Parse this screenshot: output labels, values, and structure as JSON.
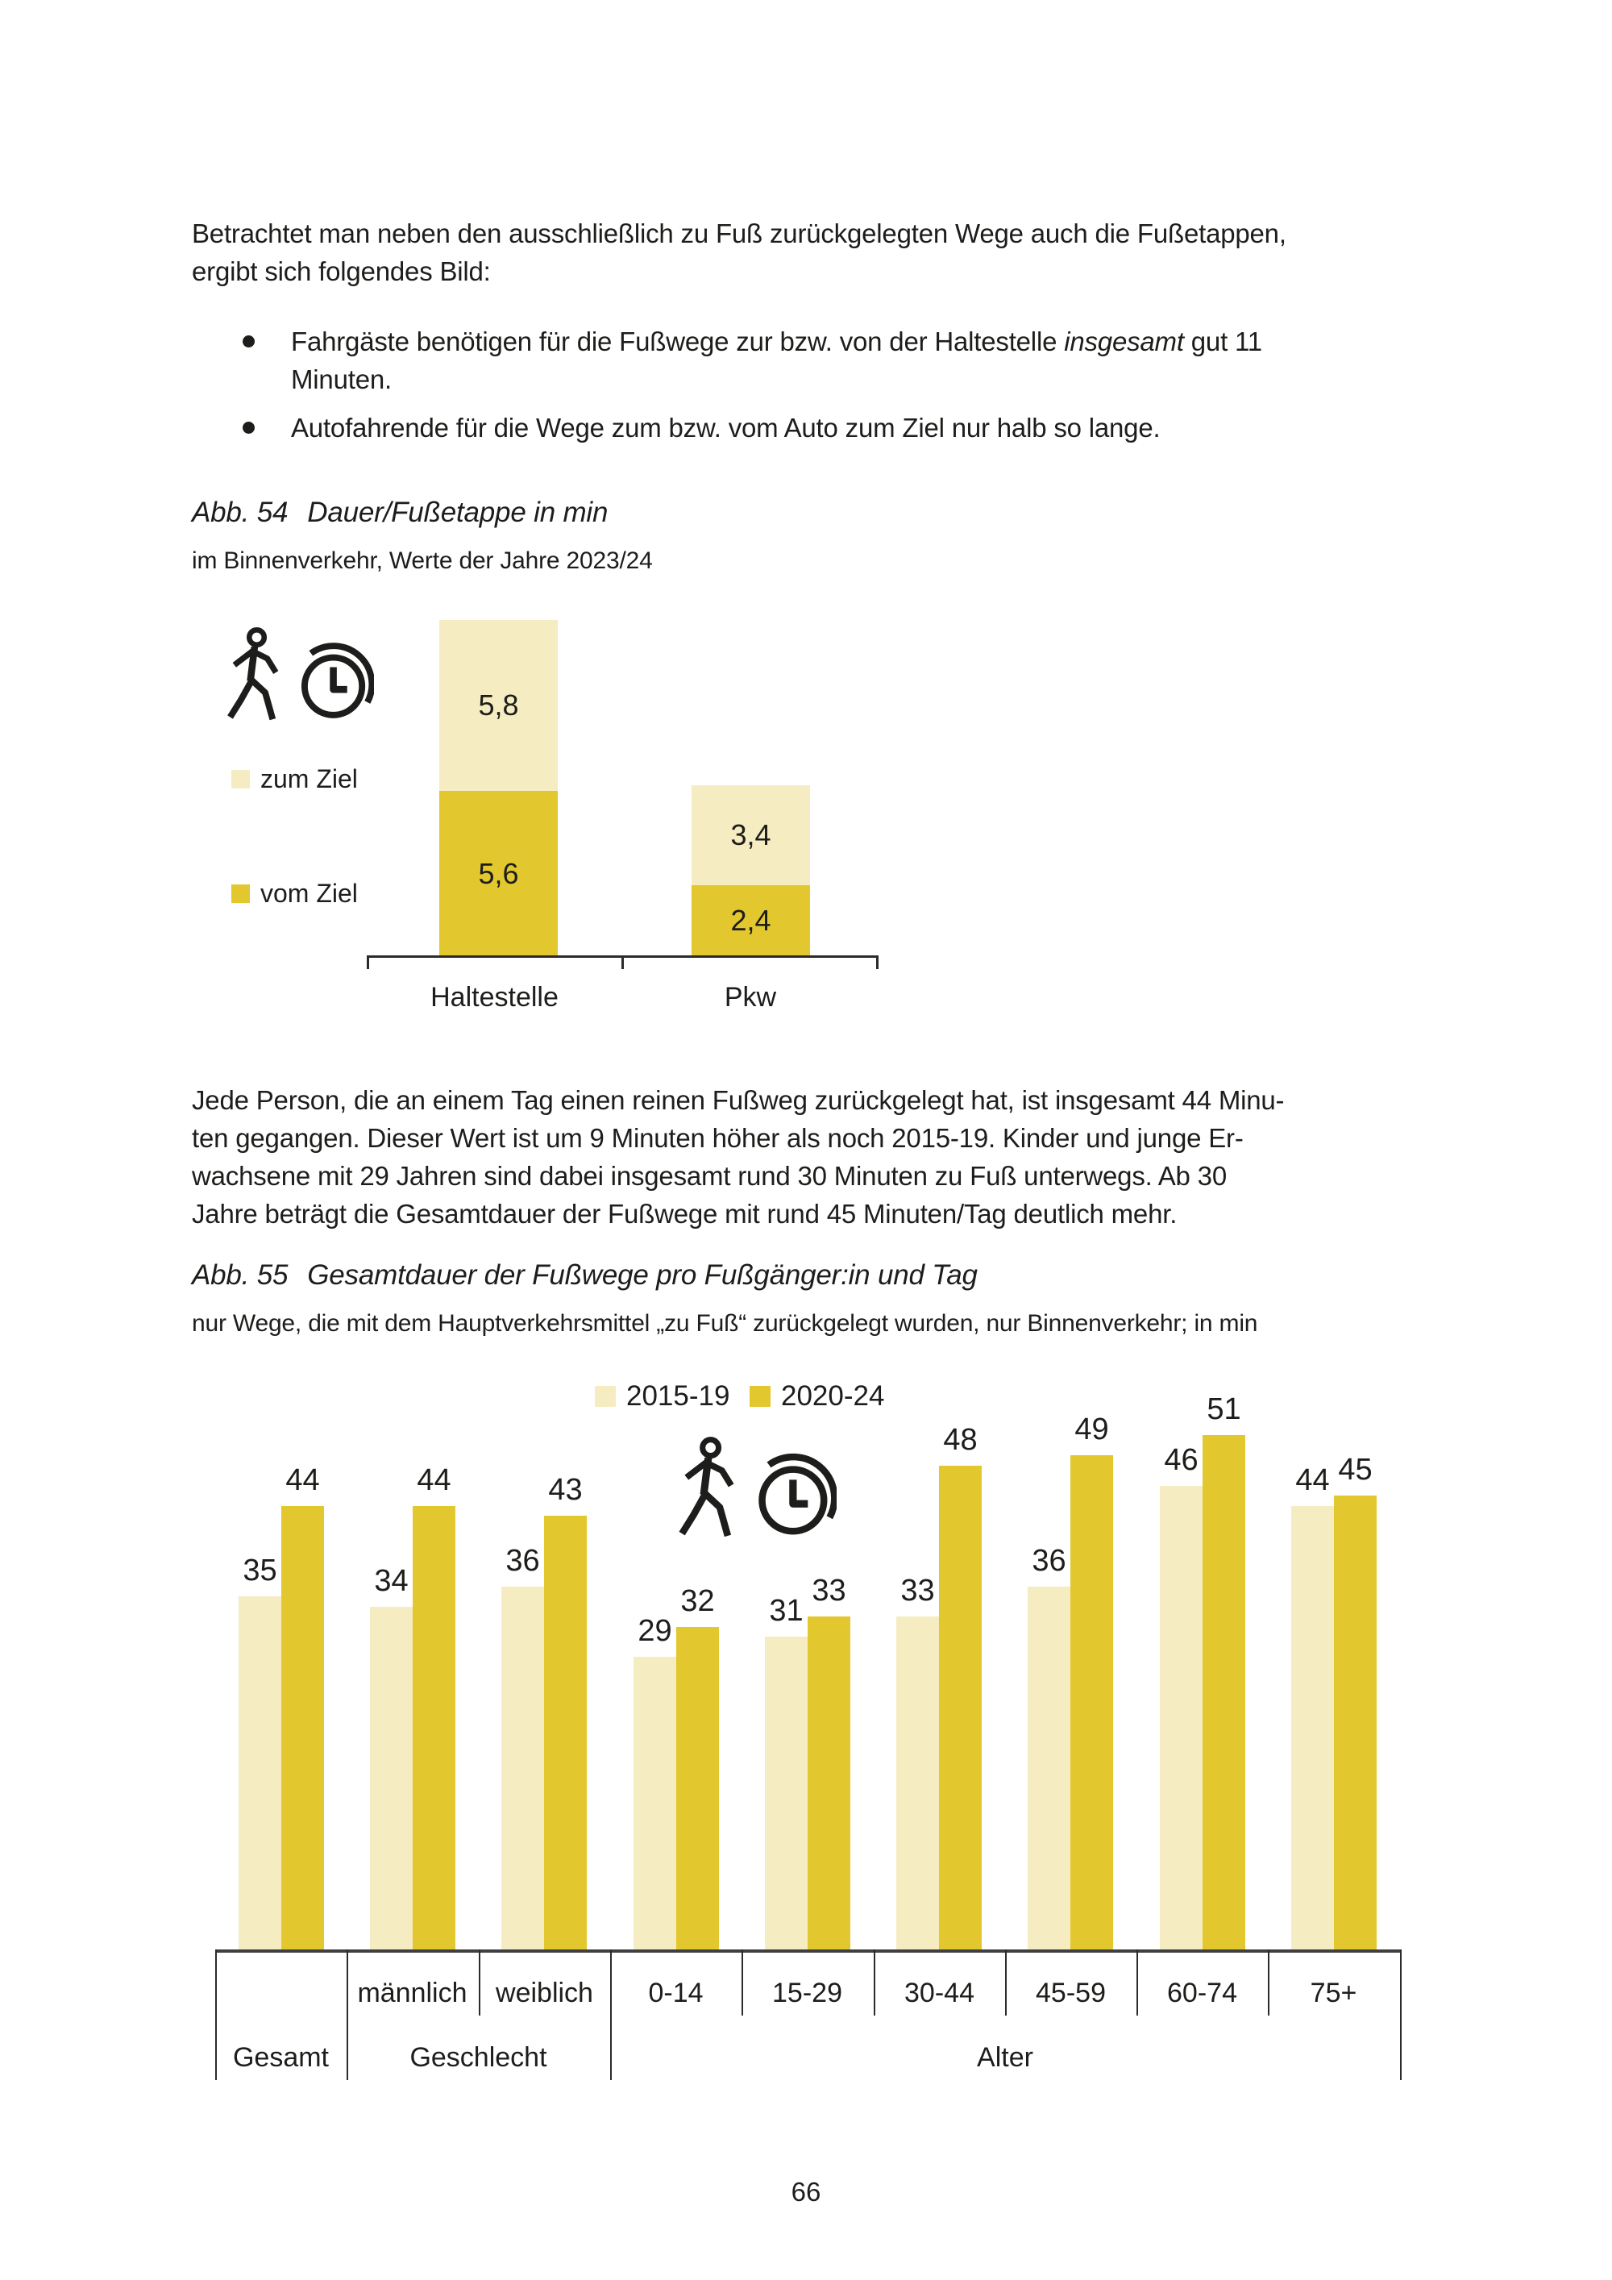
{
  "page_number": "66",
  "colors": {
    "series_light": "#F6ECC1",
    "series_dark": "#E3C72E",
    "text": "#1D1D1B",
    "axis": "#2B2B2B",
    "table_border": "#3F3F3F"
  },
  "intro": {
    "lines": [
      "Betrachtet man neben den ausschließlich zu Fuß zurückgelegten Wege auch die Fußetappen,",
      "ergibt sich folgendes Bild:"
    ]
  },
  "bullets": [
    {
      "lines": [
        {
          "pre": "Fahrgäste benötigen für die Fußwege zur bzw. von der Haltestelle ",
          "italic": "insgesamt",
          "post": " gut 11"
        },
        {
          "pre": "Minuten.",
          "italic": "",
          "post": ""
        }
      ]
    },
    {
      "lines": [
        {
          "pre": "Autofahrende für die Wege zum bzw. vom Auto zum Ziel nur halb so lange.",
          "italic": "",
          "post": ""
        }
      ]
    }
  ],
  "fig54": {
    "label": "Abb. 54",
    "title": "Dauer/Fußetappe in min",
    "subtitle": "im Binnenverkehr, Werte der Jahre 2023/24"
  },
  "para2": {
    "lines": [
      "Jede Person, die an einem Tag einen reinen Fußweg zurückgelegt hat, ist insgesamt 44 Minu-",
      "ten gegangen. Dieser Wert ist um 9 Minuten höher als noch 2015-19. Kinder und junge Er-",
      "wachsene mit 29 Jahren sind dabei insgesamt rund 30 Minuten zu Fuß unterwegs. Ab 30",
      "Jahre beträgt die Gesamtdauer der Fußwege mit rund 45 Minuten/Tag deutlich mehr."
    ]
  },
  "fig55": {
    "label": "Abb. 55",
    "title": "Gesamtdauer der Fußwege pro Fußgänger:in und Tag",
    "subtitle": "nur Wege, die mit dem Hauptverkehrsmittel „zu Fuß“ zurückgelegt wurden, nur Binnenverkehr; in min"
  },
  "chart_data": [
    {
      "type": "bar",
      "variant": "stacked",
      "figure": "Abb. 54",
      "title": "Dauer/Fußetappe in min",
      "subtitle": "im Binnenverkehr, Werte der Jahre 2023/24",
      "unit": "min",
      "categories": [
        "Haltestelle",
        "Pkw"
      ],
      "series": [
        {
          "name": "zum Ziel",
          "position": "top",
          "color_key": "series_light",
          "values": [
            5.8,
            3.4
          ],
          "labels": [
            "5,8",
            "3,4"
          ]
        },
        {
          "name": "vom Ziel",
          "position": "bottom",
          "color_key": "series_dark",
          "values": [
            5.6,
            2.4
          ],
          "labels": [
            "5,6",
            "2,4"
          ]
        }
      ],
      "legend_position": "left",
      "icon": "walking-person-stopwatch"
    },
    {
      "type": "bar",
      "variant": "grouped",
      "figure": "Abb. 55",
      "title": "Gesamtdauer der Fußwege pro Fußgänger:in und Tag",
      "subtitle": "nur Wege, die mit dem Hauptverkehrsmittel „zu Fuß“ zurückgelegt wurden, nur Binnenverkehr; in min",
      "unit": "min",
      "categories": [
        "Gesamt",
        "männlich",
        "weiblich",
        "0-14",
        "15-29",
        "30-44",
        "45-59",
        "60-74",
        "75+"
      ],
      "category_groups": [
        {
          "label": "Gesamt",
          "span": 1
        },
        {
          "label": "Geschlecht",
          "span": 2
        },
        {
          "label": "Alter",
          "span": 6
        }
      ],
      "series": [
        {
          "name": "2015-19",
          "color_key": "series_light",
          "values": [
            35,
            34,
            36,
            29,
            31,
            33,
            36,
            46,
            44
          ]
        },
        {
          "name": "2020-24",
          "color_key": "series_dark",
          "values": [
            44,
            44,
            43,
            32,
            33,
            48,
            49,
            51,
            45
          ]
        }
      ],
      "legend_position": "top",
      "icon": "walking-person-stopwatch"
    }
  ]
}
